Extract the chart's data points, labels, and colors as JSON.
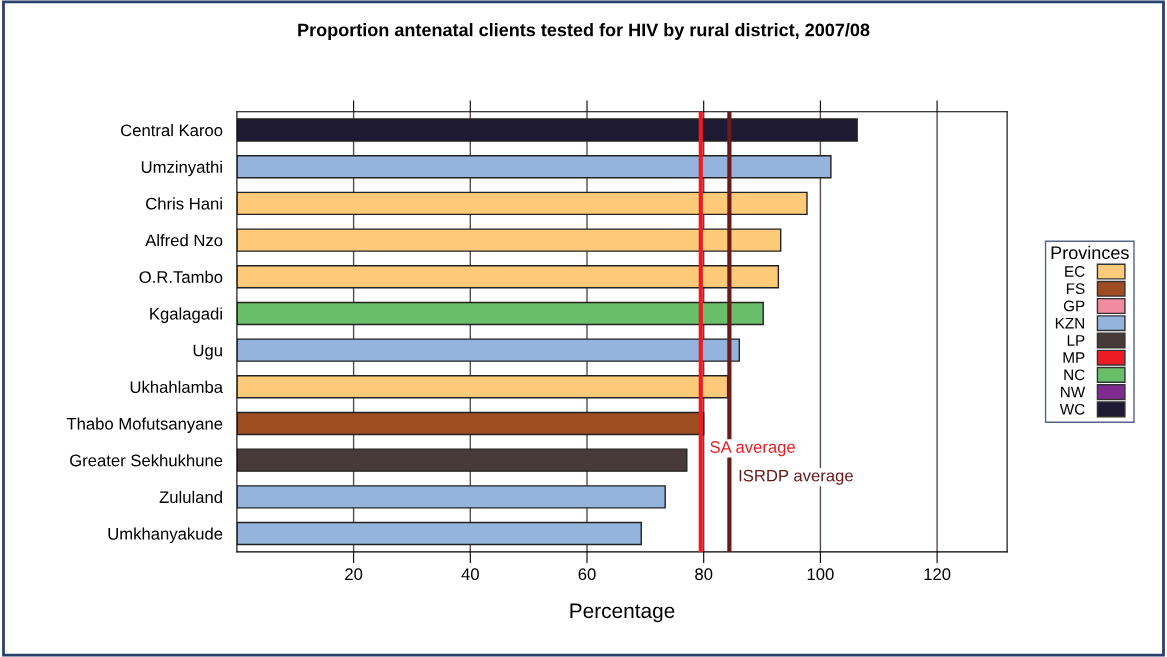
{
  "chart_data": {
    "type": "bar",
    "orientation": "horizontal",
    "stacked": true,
    "title": "Proportion antenatal clients tested for HIV by rural district, 2007/08",
    "xlabel": "Percentage",
    "legend_title": "Provinces",
    "legend": "right",
    "grid": "x",
    "categories": [
      "Central Karoo",
      "Umzinyathi",
      "Chris Hani",
      "Alfred Nzo",
      "O.R.Tambo",
      "Kgalagadi",
      "Ugu",
      "Ukhahlamba",
      "Thabo Mofutsanyane",
      "Greater Sekhukhune",
      "Zululand",
      "Umkhanyakude"
    ],
    "series": [
      {
        "name": "EC",
        "color": "#fdca7a",
        "values": [
          null,
          null,
          97.7,
          93.2,
          92.8,
          null,
          null,
          84.1,
          null,
          null,
          null,
          null
        ]
      },
      {
        "name": "FS",
        "color": "#9e4c22",
        "values": [
          null,
          null,
          null,
          null,
          null,
          null,
          null,
          null,
          80.0,
          null,
          null,
          null
        ]
      },
      {
        "name": "GP",
        "color": "#f08ba0",
        "values": [
          null,
          null,
          null,
          null,
          null,
          null,
          null,
          null,
          null,
          null,
          null,
          null
        ]
      },
      {
        "name": "KZN",
        "color": "#94b4de",
        "values": [
          null,
          101.8,
          null,
          null,
          null,
          null,
          86.1,
          null,
          null,
          null,
          73.4,
          69.3
        ]
      },
      {
        "name": "LP",
        "color": "#463b39",
        "values": [
          null,
          null,
          null,
          null,
          null,
          null,
          null,
          null,
          null,
          77.1,
          null,
          null
        ]
      },
      {
        "name": "MP",
        "color": "#ed1c24",
        "values": [
          null,
          null,
          null,
          null,
          null,
          null,
          null,
          null,
          null,
          null,
          null,
          null
        ]
      },
      {
        "name": "NC",
        "color": "#69bf69",
        "values": [
          null,
          null,
          null,
          null,
          null,
          90.2,
          null,
          null,
          null,
          null,
          null,
          null
        ]
      },
      {
        "name": "NW",
        "color": "#7f2a8f",
        "values": [
          null,
          null,
          null,
          null,
          null,
          null,
          null,
          null,
          null,
          null,
          null,
          null
        ]
      },
      {
        "name": "WC",
        "color": "#1e1a34",
        "values": [
          106.3,
          null,
          null,
          null,
          null,
          null,
          null,
          null,
          null,
          null,
          null,
          null
        ]
      }
    ],
    "xlim": [
      0,
      132
    ],
    "xticks": [
      20,
      40,
      60,
      80,
      100,
      120
    ],
    "ref_lines": [
      {
        "axis": "x",
        "value": 79.5,
        "label": "SA average",
        "color": "#ed1c24"
      },
      {
        "axis": "x",
        "value": 84.4,
        "label": "ISRDP average",
        "color": "#6b1a1a"
      }
    ]
  }
}
